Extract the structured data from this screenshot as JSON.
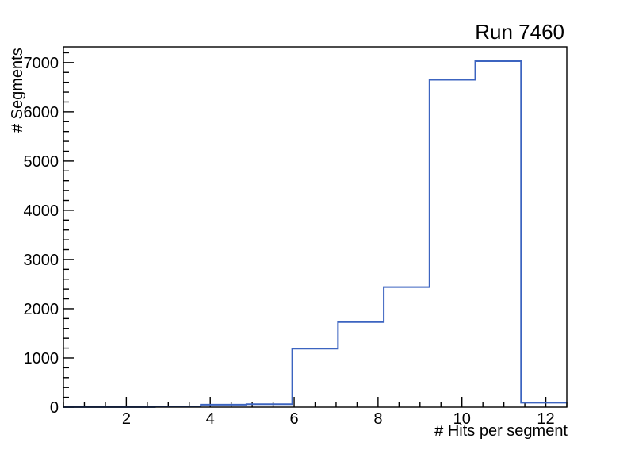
{
  "chart_data": {
    "type": "bar",
    "style": "step-histogram",
    "title": "Run 7460",
    "xlabel": "# Hits per segment",
    "ylabel": "# Segments",
    "xlim": [
      0.5,
      12.5
    ],
    "ylim": [
      0,
      7320
    ],
    "grid": false,
    "legend": "none",
    "line_color": "#3c64c0",
    "frame_color": "#000000",
    "background_color": "#ffffff",
    "x_major_ticks": [
      2,
      4,
      6,
      8,
      10,
      12
    ],
    "x_tick_labels": [
      "2",
      "4",
      "6",
      "8",
      "10",
      "12"
    ],
    "x_minor_step": 0.5,
    "y_major_ticks": [
      0,
      1000,
      2000,
      3000,
      4000,
      5000,
      6000,
      7000
    ],
    "y_tick_labels": [
      "0",
      "1000",
      "2000",
      "3000",
      "4000",
      "5000",
      "6000",
      "7000"
    ],
    "y_minor_step": 200,
    "n_bins": 11,
    "bin_edges": [
      0.5,
      1.5909,
      2.6818,
      3.7727,
      4.8636,
      5.9545,
      7.0455,
      8.1364,
      9.2273,
      10.3182,
      11.4091,
      12.5
    ],
    "counts": [
      2,
      3,
      8,
      50,
      60,
      1190,
      1730,
      2440,
      6650,
      7030,
      90
    ]
  }
}
